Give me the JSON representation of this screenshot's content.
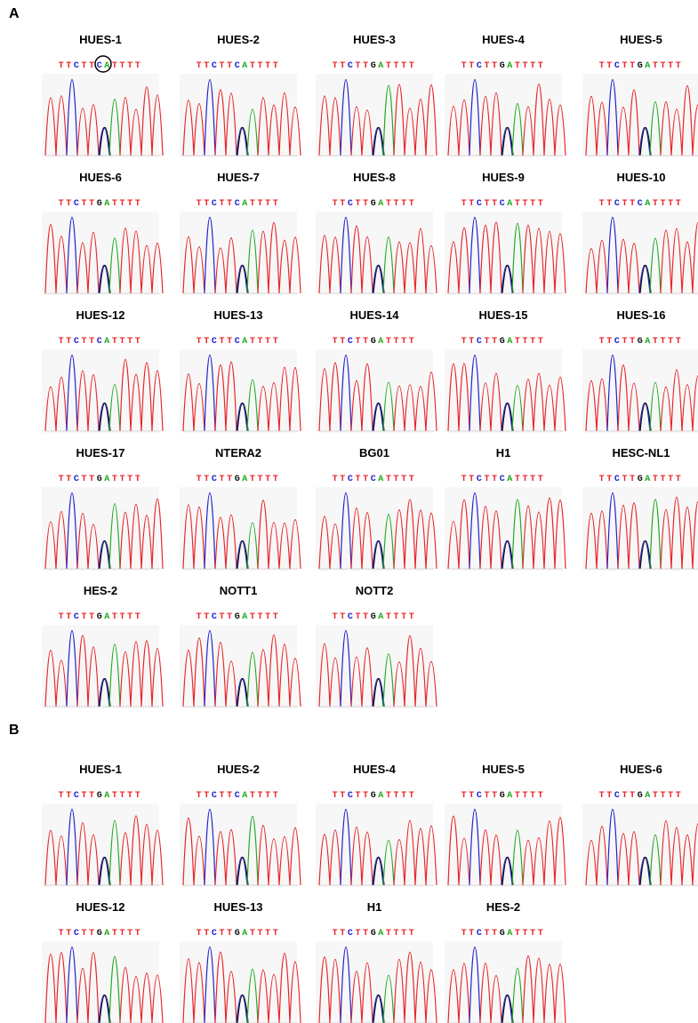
{
  "panels": [
    {
      "label": "A",
      "samples": [
        {
          "name": "HUES-1",
          "sequence": "TTCTTCATTTT"
        },
        {
          "name": "HUES-2",
          "sequence": "TTCTTCATTTT"
        },
        {
          "name": "HUES-3",
          "sequence": "TTCTTGATTTT"
        },
        {
          "name": "HUES-4",
          "sequence": "TTCTTGATTTT"
        },
        {
          "name": "HUES-5",
          "sequence": "TTCTTGATTTT"
        },
        {
          "name": "HUES-6",
          "sequence": "TTCTTGATTTT"
        },
        {
          "name": "HUES-7",
          "sequence": "TTCTTCATTTT"
        },
        {
          "name": "HUES-8",
          "sequence": "TTCTTGATTTT"
        },
        {
          "name": "HUES-9",
          "sequence": "TTCTTCATTTT"
        },
        {
          "name": "HUES-10",
          "sequence": "TTCTTCATTTT"
        },
        {
          "name": "HUES-12",
          "sequence": "TTCTTCATTTT"
        },
        {
          "name": "HUES-13",
          "sequence": "TTCTTCATTTT"
        },
        {
          "name": "HUES-14",
          "sequence": "TTCTTGATTTT"
        },
        {
          "name": "HUES-15",
          "sequence": "TTCTTGATTTT"
        },
        {
          "name": "HUES-16",
          "sequence": "TTCTTGATTTT"
        },
        {
          "name": "HUES-17",
          "sequence": "TTCTTGATTTT"
        },
        {
          "name": "NTERA2",
          "sequence": "TTCTTGATTTT"
        },
        {
          "name": "BG01",
          "sequence": "TTCTTCATTTT"
        },
        {
          "name": "H1",
          "sequence": "TTCTTCATTTT"
        },
        {
          "name": "HESC-NL1",
          "sequence": "TTCTTGATTTT"
        },
        {
          "name": "HES-2",
          "sequence": "TTCTTGATTTT"
        },
        {
          "name": "NOTT1",
          "sequence": "TTCTTGATTTT"
        },
        {
          "name": "NOTT2",
          "sequence": "TTCTTGATTTT"
        }
      ]
    },
    {
      "label": "B",
      "samples": [
        {
          "name": "HUES-1",
          "sequence": "TTCTTGATTTT"
        },
        {
          "name": "HUES-2",
          "sequence": "TTCTTCATTTT"
        },
        {
          "name": "HUES-4",
          "sequence": "TTCTTGATTTT"
        },
        {
          "name": "HUES-5",
          "sequence": "TTCTTGATTTT"
        },
        {
          "name": "HUES-6",
          "sequence": "TTCTTGATTTT"
        },
        {
          "name": "HUES-12",
          "sequence": "TTCTTGATTTT"
        },
        {
          "name": "HUES-13",
          "sequence": "TTCTTGATTTT"
        },
        {
          "name": "H1",
          "sequence": "TTCTTGATTTT"
        },
        {
          "name": "HES-2",
          "sequence": "TTCTTGATTTT"
        }
      ]
    }
  ]
}
